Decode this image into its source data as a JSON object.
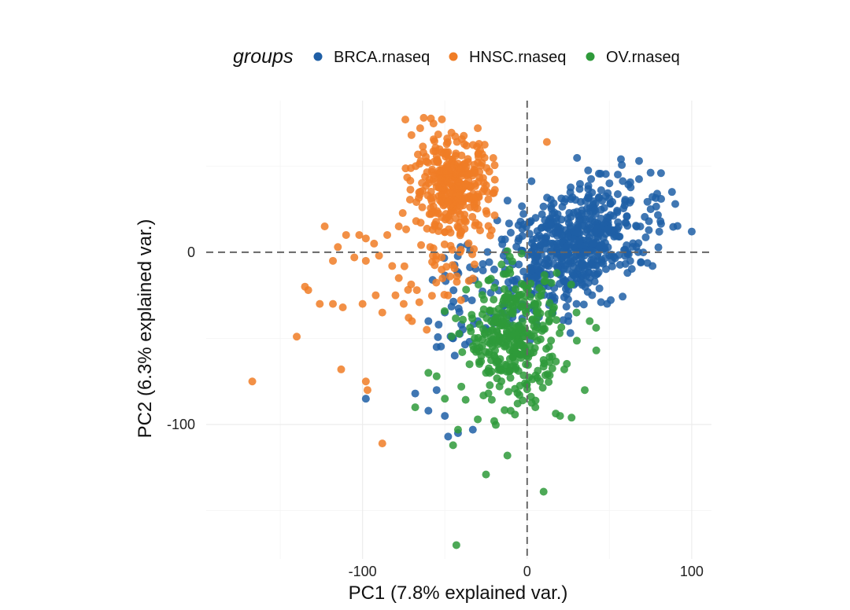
{
  "chart_data": {
    "type": "scatter",
    "title": "",
    "xlabel": "PC1 (7.8% explained var.)",
    "ylabel": "PC2 (6.3% explained var.)",
    "xlim": [
      -195,
      112
    ],
    "ylim": [
      -178,
      88
    ],
    "x_ticks": [
      -100,
      0,
      100
    ],
    "y_ticks": [
      0,
      -100
    ],
    "x_tick_labels": [
      "-100",
      "0",
      "100"
    ],
    "y_tick_labels": [
      "0",
      "-100"
    ],
    "grid": true,
    "reference_lines": {
      "x": 0,
      "y": 0,
      "style": "dashed"
    },
    "legend": {
      "title": "groups",
      "position": "top"
    },
    "series": [
      {
        "name": "BRCA.rnaseq",
        "color": "#1f5fa6",
        "cluster": {
          "center": [
            30,
            5
          ],
          "spread": [
            22,
            15
          ],
          "n": 560,
          "rotation": 0.45
        },
        "tail": {
          "x_range": [
            -60,
            10
          ],
          "y_range": [
            -55,
            5
          ],
          "n": 70
        },
        "points": [
          [
            100,
            12
          ],
          [
            90,
            28
          ],
          [
            88,
            35
          ],
          [
            81,
            18
          ],
          [
            74,
            18
          ],
          [
            68,
            53
          ],
          [
            57,
            54
          ],
          [
            50,
            40
          ],
          [
            45,
            36
          ],
          [
            40,
            5
          ],
          [
            35,
            -10
          ],
          [
            30,
            -30
          ],
          [
            25,
            -40
          ],
          [
            15,
            -35
          ],
          [
            10,
            -20
          ],
          [
            -5,
            -25
          ],
          [
            -15,
            -35
          ],
          [
            -25,
            -45
          ],
          [
            -30,
            -40
          ],
          [
            -40,
            -42
          ],
          [
            -45,
            -50
          ],
          [
            -55,
            -55
          ],
          [
            -60,
            -40
          ],
          [
            -50,
            -35
          ],
          [
            -68,
            -82
          ],
          [
            -60,
            -92
          ],
          [
            -55,
            -80
          ],
          [
            -50,
            -95
          ],
          [
            -48,
            -107
          ],
          [
            -42,
            -105
          ],
          [
            -33,
            -103
          ],
          [
            -98,
            -85
          ],
          [
            -44,
            -60
          ],
          [
            -35,
            -52
          ],
          [
            -20,
            -10
          ],
          [
            -12,
            -5
          ],
          [
            -5,
            8
          ]
        ]
      },
      {
        "name": "HNSC.rnaseq",
        "color": "#f07d26",
        "cluster": {
          "center": [
            -45,
            38
          ],
          "spread": [
            12,
            14
          ],
          "n": 360
        },
        "tail": {
          "x_range": [
            -75,
            -30
          ],
          "y_range": [
            -30,
            5
          ],
          "n": 28
        },
        "points": [
          [
            -74,
            77
          ],
          [
            -65,
            72
          ],
          [
            -30,
            72
          ],
          [
            12,
            64
          ],
          [
            -123,
            15
          ],
          [
            -110,
            10
          ],
          [
            -102,
            10
          ],
          [
            -98,
            8
          ],
          [
            -93,
            5
          ],
          [
            -85,
            10
          ],
          [
            -78,
            15
          ],
          [
            -115,
            3
          ],
          [
            -118,
            -5
          ],
          [
            -105,
            -3
          ],
          [
            -98,
            -5
          ],
          [
            -90,
            -2
          ],
          [
            -82,
            -8
          ],
          [
            -78,
            -15
          ],
          [
            -135,
            -20
          ],
          [
            -133,
            -22
          ],
          [
            -126,
            -30
          ],
          [
            -118,
            -30
          ],
          [
            -112,
            -32
          ],
          [
            -100,
            -30
          ],
          [
            -92,
            -25
          ],
          [
            -88,
            -35
          ],
          [
            -80,
            -25
          ],
          [
            -75,
            -30
          ],
          [
            -72,
            -38
          ],
          [
            -70,
            -40
          ],
          [
            -140,
            -49
          ],
          [
            -113,
            -68
          ],
          [
            -98,
            -75
          ],
          [
            -97,
            -80
          ],
          [
            -167,
            -75
          ],
          [
            -88,
            -111
          ],
          [
            -61,
            -45
          ],
          [
            -67,
            -22
          ]
        ]
      },
      {
        "name": "OV.rnaseq",
        "color": "#2e9a3a",
        "cluster": {
          "center": [
            -8,
            -50
          ],
          "spread": [
            14,
            18
          ],
          "n": 330
        },
        "points": [
          [
            -43,
            -170
          ],
          [
            -25,
            -129
          ],
          [
            -12,
            -118
          ],
          [
            10,
            -139
          ],
          [
            -45,
            -112
          ],
          [
            -42,
            -103
          ],
          [
            -30,
            -97
          ],
          [
            -20,
            -98
          ],
          [
            -10,
            -92
          ],
          [
            5,
            -90
          ],
          [
            20,
            -95
          ],
          [
            27,
            -96
          ],
          [
            35,
            -80
          ],
          [
            42,
            -57
          ],
          [
            38,
            -40
          ],
          [
            30,
            -35
          ],
          [
            -68,
            -90
          ],
          [
            -60,
            -70
          ],
          [
            -55,
            -72
          ],
          [
            -50,
            -85
          ],
          [
            -40,
            -78
          ],
          [
            -35,
            -65
          ],
          [
            -25,
            -70
          ],
          [
            -20,
            -60
          ],
          [
            -15,
            -40
          ],
          [
            -5,
            -25
          ],
          [
            0,
            -20
          ],
          [
            5,
            -30
          ]
        ]
      }
    ]
  }
}
